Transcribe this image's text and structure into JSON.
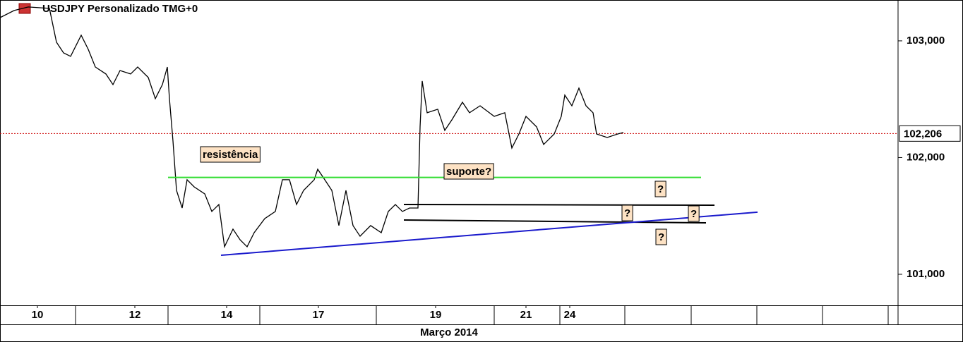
{
  "chart_data": {
    "type": "line",
    "title": "USDJPY Personalizado TMG+0",
    "x_axis_label": "Março 2014",
    "x": [
      0,
      2,
      4,
      7,
      8,
      9,
      10,
      11.5,
      12.5,
      13.5,
      15,
      16,
      17,
      18.5,
      19.5,
      21,
      22,
      23,
      23.7,
      24,
      24.5,
      25,
      25.8,
      26.5,
      27.5,
      29,
      30,
      31,
      31.8,
      33,
      34,
      35,
      36,
      37.5,
      39,
      40,
      41,
      42,
      43,
      44.5,
      45,
      46,
      47,
      48,
      49,
      50,
      51,
      52.5,
      54,
      55,
      56,
      57,
      58,
      59.2,
      59.5,
      59.8,
      60.5,
      62,
      63,
      64,
      65.5,
      66.5,
      68,
      70,
      71.5,
      72.5,
      73.5,
      74.5,
      76,
      77,
      78.5,
      79.5,
      80,
      81,
      82,
      83,
      84,
      84.5,
      86,
      87.5,
      88.3
    ],
    "series": [
      {
        "color": "#000000",
        "values": [
          103.199,
          103.26,
          103.29,
          103.278,
          102.988,
          102.897,
          102.867,
          103.048,
          102.927,
          102.776,
          102.716,
          102.625,
          102.746,
          102.716,
          102.776,
          102.686,
          102.505,
          102.625,
          102.776,
          102.505,
          102.142,
          101.719,
          101.568,
          101.81,
          101.749,
          101.689,
          101.538,
          101.598,
          101.236,
          101.387,
          101.296,
          101.236,
          101.356,
          101.477,
          101.538,
          101.81,
          101.81,
          101.598,
          101.719,
          101.81,
          101.9,
          101.81,
          101.719,
          101.417,
          101.719,
          101.417,
          101.326,
          101.417,
          101.356,
          101.538,
          101.598,
          101.538,
          101.568,
          101.568,
          102.263,
          102.656,
          102.384,
          102.414,
          102.233,
          102.323,
          102.474,
          102.384,
          102.444,
          102.353,
          102.384,
          102.082,
          102.202,
          102.353,
          102.263,
          102.112,
          102.202,
          102.353,
          102.535,
          102.444,
          102.595,
          102.444,
          102.384,
          102.202,
          102.172,
          102.202,
          102.215
        ]
      }
    ],
    "xlim": [
      0,
      127.2
    ],
    "xticks": [
      {
        "value": 5.3,
        "label": "10"
      },
      {
        "value": 19.1,
        "label": "12"
      },
      {
        "value": 32.1,
        "label": "14"
      },
      {
        "value": 45.1,
        "label": "17"
      },
      {
        "value": 61.7,
        "label": "19"
      },
      {
        "value": 74.5,
        "label": "21"
      },
      {
        "value": 80.7,
        "label": "24"
      }
    ],
    "ylim": [
      100.734,
      103.35
    ],
    "yticks": [
      {
        "value": 103,
        "label": "103,000"
      },
      {
        "value": 102,
        "label": "102,000"
      },
      {
        "value": 101,
        "label": "101,000"
      }
    ],
    "current_price": {
      "value": 102.206,
      "label": "102,206",
      "color": "#cc0000"
    },
    "trendlines": [
      {
        "color": "#33dd33",
        "x": [
          23.8,
          99.3
        ],
        "y": [
          101.83,
          101.83
        ]
      },
      {
        "color": "#000000",
        "x": [
          57.2,
          101.2
        ],
        "y": [
          101.598,
          101.592
        ]
      },
      {
        "color": "#000000",
        "x": [
          57.2,
          100
        ],
        "y": [
          101.465,
          101.441
        ]
      },
      {
        "color": "#1a1acc",
        "x": [
          31.3,
          107.3
        ],
        "y": [
          101.163,
          101.532
        ]
      }
    ],
    "annotations": [
      "resistência",
      "suporte?",
      "?",
      "?",
      "?",
      "?"
    ]
  }
}
